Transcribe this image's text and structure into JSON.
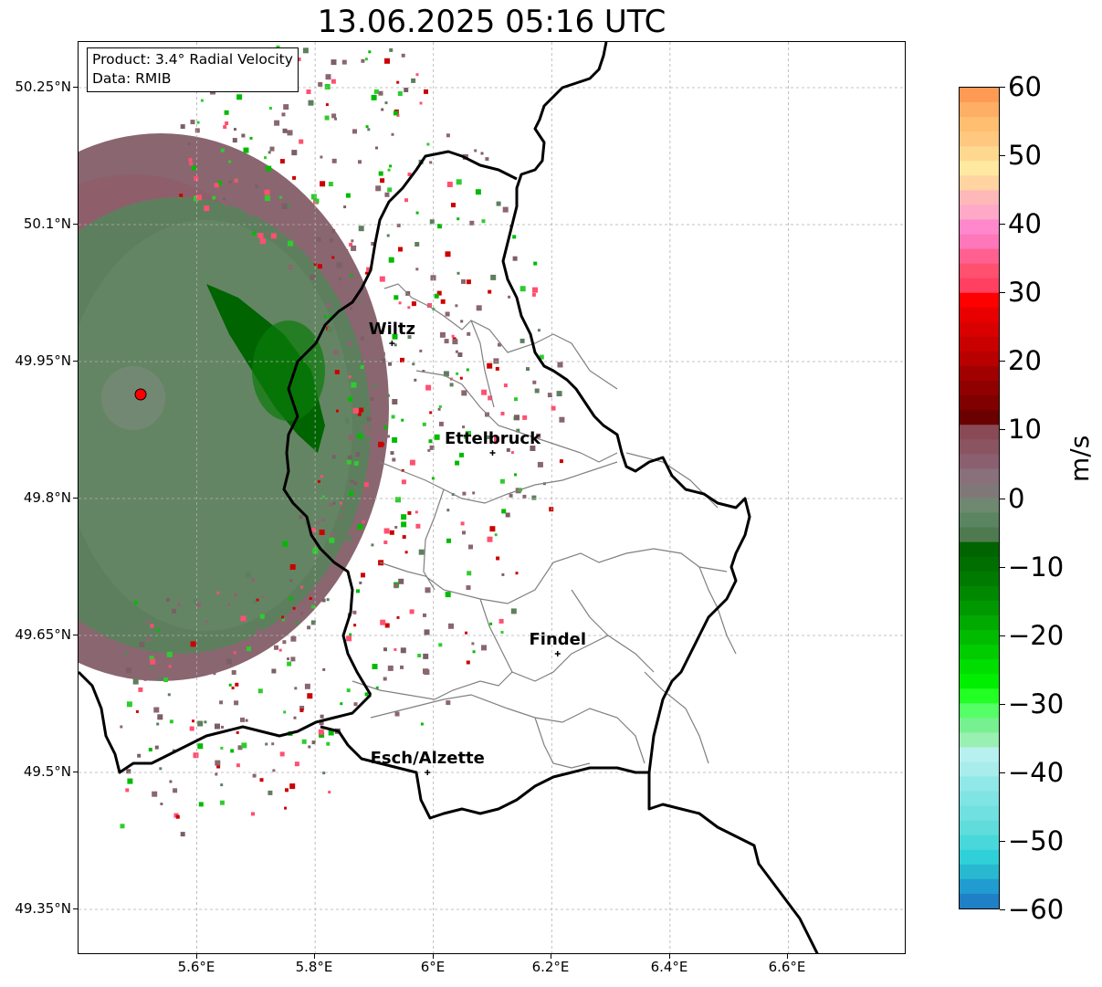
{
  "title": "13.06.2025 05:16 UTC",
  "info_box": {
    "product": "Product: 3.4° Radial Velocity",
    "data": "Data: RMIB"
  },
  "lat_labels": [
    "50.25°N",
    "50.1°N",
    "49.95°N",
    "49.8°N",
    "49.65°N",
    "49.5°N",
    "49.35°N"
  ],
  "lon_labels": [
    "5.6°E",
    "5.8°E",
    "6°E",
    "6.2°E",
    "6.4°E",
    "6.6°E"
  ],
  "cities": [
    {
      "name": "Wiltz",
      "lon": 5.93,
      "lat": 49.97
    },
    {
      "name": "Ettelbruck",
      "lon": 6.1,
      "lat": 49.85
    },
    {
      "name": "Findel",
      "lon": 6.21,
      "lat": 49.63
    },
    {
      "name": "Esch/Alzette",
      "lon": 5.99,
      "lat": 49.5
    }
  ],
  "radar_site": {
    "lon": 5.505,
    "lat": 49.914,
    "color": "#ff0000"
  },
  "map_extent": {
    "lon_min": 5.4,
    "lon_max": 6.8,
    "lat_min": 49.3,
    "lat_max": 50.3
  },
  "colorbar": {
    "unit": "m/s",
    "tick_labels": [
      "60",
      "50",
      "40",
      "30",
      "20",
      "10",
      "0",
      "−10",
      "−20",
      "−30",
      "−40",
      "−50",
      "−60"
    ],
    "range": [
      -60,
      60
    ],
    "colors_top_to_bottom": [
      "#ff9a55",
      "#ffae65",
      "#ffbe70",
      "#ffc780",
      "#ffd890",
      "#ffe8a0",
      "#ffd4a0",
      "#ffb8b8",
      "#ffa8c8",
      "#ff88cc",
      "#ff77bb",
      "#ff6090",
      "#ff5070",
      "#ff4060",
      "#ff0000",
      "#e80000",
      "#d80000",
      "#c80000",
      "#b80000",
      "#a00000",
      "#900000",
      "#800000",
      "#6a0000",
      "#8a4a55",
      "#8a5560",
      "#8a6070",
      "#8a707a",
      "#807878",
      "#6f8870",
      "#5a8560",
      "#4f7a50",
      "#006400",
      "#006e00",
      "#007a00",
      "#008800",
      "#009800",
      "#00aa00",
      "#00bb00",
      "#00cc00",
      "#00dd00",
      "#00ee00",
      "#22ff22",
      "#55ff66",
      "#77f090",
      "#99f0b0",
      "#b8f0f0",
      "#a8ecec",
      "#90e8e8",
      "#80e4e4",
      "#70e0e0",
      "#60dcdc",
      "#48d8dc",
      "#30d0d8",
      "#28b8d0",
      "#209cd0",
      "#1f80c8"
    ]
  },
  "colors": {
    "border_national": "#000000",
    "border_cantonal": "#808080",
    "grid": "#b0b0b0",
    "echo_pink": "#8a6670",
    "echo_green": "#5e7f5e",
    "echo_darkgreen": "#006400"
  }
}
